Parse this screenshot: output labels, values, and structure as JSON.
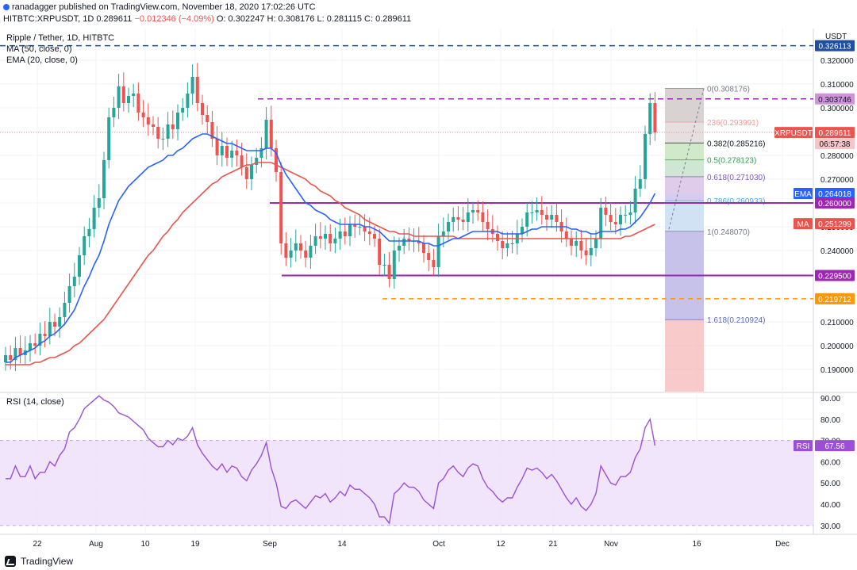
{
  "header": {
    "line1": "ranadagger published on TradingView.com, November 18, 2020 17:02:26 UTC",
    "symbol": "HITBTC:XRPUSDT, 1D",
    "price": "0.289611",
    "change": "−0.012346 (−4.09%)",
    "ohlc_open": "O: 0.302247",
    "ohlc_high": "H: 0.308176",
    "ohlc_low": "L: 0.281115",
    "ohlc_close": "C: 0.289611"
  },
  "legend": {
    "title": "Ripple / Tether, 1D, HITBTC",
    "ma": "MA (50, close, 0)",
    "ema": "EMA (20, close, 0)",
    "rsi": "RSI (14, close)"
  },
  "axis": {
    "currency": "USDT",
    "price_ticks": [
      "0.320000",
      "0.310000",
      "0.300000",
      "0.290000",
      "0.280000",
      "0.270000",
      "0.260000",
      "0.250000",
      "0.240000",
      "0.230000",
      "0.220000",
      "0.210000",
      "0.200000",
      "0.190000"
    ],
    "rsi_ticks": [
      "90.00",
      "80.00",
      "70.00",
      "60.00",
      "50.00",
      "40.00",
      "30.00"
    ],
    "time_labels": [
      "22",
      "Aug",
      "10",
      "19",
      "Sep",
      "14",
      "Oct",
      "12",
      "21",
      "Nov",
      "16",
      "Dec"
    ]
  },
  "price_tags": {
    "high": "0.326113",
    "resist": "0.303746",
    "xrpusdt": "XRPUSDT",
    "xrp_price": "0.289611",
    "countdown": "06:57:38",
    "ema_label": "EMA",
    "ema_value": "0.264018",
    "support1": "0.260000",
    "ma_label": "MA",
    "ma_value": "0.251299",
    "support2": "0.229500",
    "support3": "0.219712",
    "rsi_label": "RSI",
    "rsi_value": "67.56"
  },
  "fib_labels": {
    "f0": "0(0.308176)",
    "f236": "236(0.293991)",
    "f382": "0.382(0.285216)",
    "f5": "0.5(0.278123)",
    "f618": "0.618(0.271030)",
    "f786": "0.786(0.260933)",
    "f1": "1(0.248070)",
    "f1618": "1.618(0.210924)"
  },
  "footer": {
    "brand": "TradingView"
  },
  "colors": {
    "up": "#26a69a",
    "down": "#ef5350",
    "ema": "#2962ff",
    "ma": "#e8554e",
    "support": "#9c27b0",
    "high_line": "#1e4fa0",
    "rsi": "#9c4fd6",
    "orange": "#ff9800"
  },
  "chart_data": {
    "type": "candlestick",
    "symbol": "XRPUSDT",
    "timeframe": "1D",
    "y_range": [
      0.183,
      0.333
    ],
    "horizontal_levels": [
      0.326113,
      0.303746,
      0.26,
      0.2295,
      0.219712
    ],
    "fib_levels": [
      0.308176,
      0.293991,
      0.285216,
      0.278123,
      0.27103,
      0.260933,
      0.24807,
      0.210924
    ],
    "closes": [
      0.196,
      0.194,
      0.199,
      0.196,
      0.198,
      0.201,
      0.2,
      0.205,
      0.204,
      0.21,
      0.208,
      0.212,
      0.218,
      0.225,
      0.229,
      0.238,
      0.246,
      0.249,
      0.258,
      0.262,
      0.278,
      0.296,
      0.3,
      0.309,
      0.302,
      0.305,
      0.306,
      0.298,
      0.296,
      0.293,
      0.292,
      0.287,
      0.287,
      0.293,
      0.291,
      0.298,
      0.3,
      0.306,
      0.313,
      0.302,
      0.297,
      0.294,
      0.287,
      0.28,
      0.284,
      0.279,
      0.282,
      0.28,
      0.275,
      0.27,
      0.276,
      0.279,
      0.283,
      0.295,
      0.283,
      0.273,
      0.243,
      0.237,
      0.24,
      0.243,
      0.24,
      0.237,
      0.242,
      0.246,
      0.245,
      0.247,
      0.243,
      0.245,
      0.248,
      0.246,
      0.251,
      0.25,
      0.25,
      0.248,
      0.247,
      0.245,
      0.234,
      0.234,
      0.228,
      0.24,
      0.242,
      0.245,
      0.244,
      0.244,
      0.243,
      0.239,
      0.236,
      0.233,
      0.246,
      0.248,
      0.252,
      0.254,
      0.253,
      0.252,
      0.256,
      0.257,
      0.256,
      0.252,
      0.249,
      0.247,
      0.244,
      0.241,
      0.243,
      0.243,
      0.247,
      0.25,
      0.256,
      0.256,
      0.257,
      0.255,
      0.253,
      0.255,
      0.252,
      0.248,
      0.245,
      0.242,
      0.244,
      0.24,
      0.238,
      0.241,
      0.245,
      0.258,
      0.255,
      0.252,
      0.251,
      0.255,
      0.255,
      0.256,
      0.266,
      0.27,
      0.289,
      0.302,
      0.2896
    ],
    "ema20": [
      0.193,
      0.193,
      0.195,
      0.196,
      0.197,
      0.198,
      0.199,
      0.201,
      0.202,
      0.204,
      0.205,
      0.207,
      0.209,
      0.212,
      0.215,
      0.22,
      0.225,
      0.229,
      0.234,
      0.238,
      0.244,
      0.251,
      0.256,
      0.261,
      0.264,
      0.267,
      0.269,
      0.271,
      0.273,
      0.275,
      0.276,
      0.277,
      0.278,
      0.28,
      0.28,
      0.282,
      0.283,
      0.285,
      0.287,
      0.288,
      0.289,
      0.289,
      0.288,
      0.287,
      0.286,
      0.285,
      0.285,
      0.284,
      0.283,
      0.282,
      0.282,
      0.282,
      0.282,
      0.283,
      0.283,
      0.281,
      0.276,
      0.272,
      0.269,
      0.266,
      0.263,
      0.26,
      0.259,
      0.257,
      0.256,
      0.255,
      0.253,
      0.252,
      0.251,
      0.251,
      0.251,
      0.251,
      0.251,
      0.25,
      0.25,
      0.249,
      0.248,
      0.246,
      0.244,
      0.244,
      0.244,
      0.244,
      0.244,
      0.244,
      0.244,
      0.243,
      0.243,
      0.242,
      0.242,
      0.243,
      0.244,
      0.245,
      0.245,
      0.246,
      0.247,
      0.248,
      0.248,
      0.248,
      0.248,
      0.248,
      0.248,
      0.247,
      0.247,
      0.247,
      0.247,
      0.247,
      0.248,
      0.249,
      0.249,
      0.25,
      0.25,
      0.25,
      0.25,
      0.25,
      0.25,
      0.249,
      0.249,
      0.248,
      0.248,
      0.247,
      0.247,
      0.248,
      0.248,
      0.248,
      0.248,
      0.249,
      0.249,
      0.25,
      0.252,
      0.254,
      0.257,
      0.26,
      0.264
    ],
    "ma50": [
      0.192,
      0.192,
      0.192,
      0.192,
      0.192,
      0.192,
      0.193,
      0.193,
      0.194,
      0.195,
      0.195,
      0.196,
      0.197,
      0.198,
      0.2,
      0.201,
      0.203,
      0.205,
      0.207,
      0.209,
      0.211,
      0.214,
      0.217,
      0.22,
      0.223,
      0.226,
      0.229,
      0.232,
      0.235,
      0.238,
      0.24,
      0.243,
      0.246,
      0.248,
      0.251,
      0.253,
      0.256,
      0.258,
      0.26,
      0.262,
      0.264,
      0.266,
      0.268,
      0.269,
      0.271,
      0.272,
      0.273,
      0.274,
      0.275,
      0.276,
      0.276,
      0.277,
      0.277,
      0.277,
      0.277,
      0.276,
      0.275,
      0.274,
      0.273,
      0.272,
      0.271,
      0.27,
      0.268,
      0.267,
      0.265,
      0.264,
      0.263,
      0.261,
      0.26,
      0.258,
      0.257,
      0.256,
      0.255,
      0.253,
      0.252,
      0.251,
      0.25,
      0.249,
      0.248,
      0.248,
      0.247,
      0.247,
      0.247,
      0.246,
      0.246,
      0.246,
      0.246,
      0.246,
      0.246,
      0.246,
      0.246,
      0.246,
      0.245,
      0.245,
      0.245,
      0.245,
      0.245,
      0.245,
      0.245,
      0.245,
      0.245,
      0.245,
      0.245,
      0.245,
      0.245,
      0.245,
      0.245,
      0.245,
      0.245,
      0.245,
      0.245,
      0.245,
      0.245,
      0.245,
      0.245,
      0.245,
      0.245,
      0.245,
      0.245,
      0.245,
      0.245,
      0.245,
      0.245,
      0.245,
      0.245,
      0.245,
      0.246,
      0.246,
      0.247,
      0.248,
      0.249,
      0.25,
      0.251
    ],
    "rsi": [
      52,
      52,
      58,
      53,
      53,
      58,
      52,
      55,
      55,
      60,
      58,
      63,
      66,
      74,
      76,
      80,
      85,
      87,
      89,
      91,
      89,
      88,
      86,
      83,
      82,
      81,
      79,
      77,
      75,
      71,
      69,
      67,
      67,
      70,
      68,
      71,
      70,
      72,
      76,
      68,
      64,
      61,
      58,
      56,
      59,
      55,
      58,
      57,
      53,
      51,
      56,
      59,
      63,
      69,
      57,
      50,
      39,
      38,
      41,
      42,
      40,
      38,
      41,
      44,
      43,
      45,
      41,
      43,
      46,
      44,
      49,
      47,
      47,
      45,
      43,
      40,
      34,
      34,
      31,
      45,
      47,
      50,
      48,
      48,
      46,
      42,
      40,
      38,
      50,
      52,
      56,
      58,
      55,
      53,
      57,
      59,
      58,
      52,
      48,
      46,
      43,
      41,
      43,
      43,
      48,
      52,
      57,
      56,
      57,
      55,
      52,
      54,
      51,
      47,
      43,
      40,
      43,
      39,
      37,
      40,
      45,
      58,
      54,
      50,
      49,
      53,
      53,
      55,
      62,
      66,
      76,
      80,
      67.56
    ]
  }
}
